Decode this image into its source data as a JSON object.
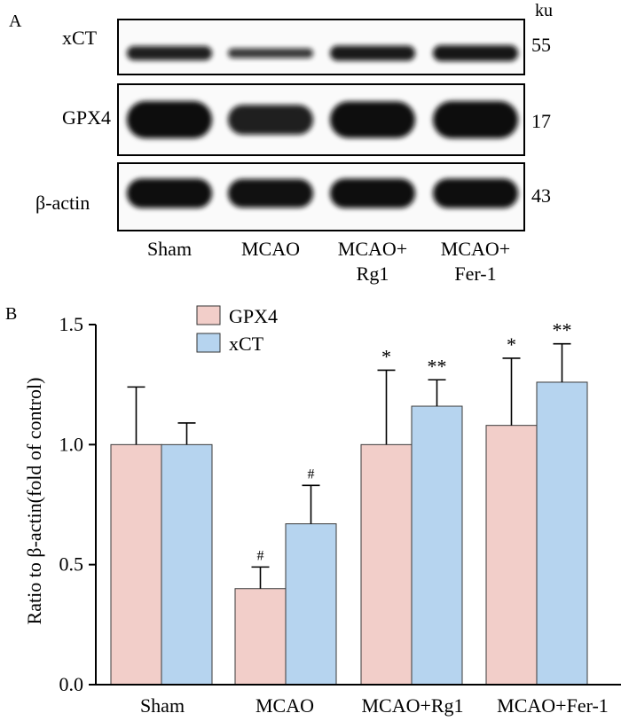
{
  "panel_a": {
    "panel_label": "A",
    "unit_label": "ku",
    "rows": [
      {
        "name": "xCT",
        "marker": "55",
        "intensities": [
          0.8,
          0.55,
          0.85,
          0.9
        ]
      },
      {
        "name": "GPX4",
        "marker": "17",
        "intensities": [
          1.0,
          0.8,
          0.98,
          1.0
        ]
      },
      {
        "name": "β-actin",
        "marker": "43",
        "intensities": [
          0.98,
          0.95,
          0.98,
          0.98
        ]
      }
    ],
    "lanes": [
      {
        "line1": "Sham",
        "line2": ""
      },
      {
        "line1": "MCAO",
        "line2": ""
      },
      {
        "line1": "MCAO+",
        "line2": "Rg1"
      },
      {
        "line1": "MCAO+",
        "line2": "Fer-1"
      }
    ]
  },
  "chart_data": {
    "panel_label": "B",
    "type": "bar",
    "title": "",
    "xlabel": "",
    "ylabel": "Ratio to β-actin(fold of control)",
    "ylim": [
      0,
      1.5
    ],
    "yticks": [
      "0.0",
      "0.5",
      "1.0",
      "1.5"
    ],
    "categories": [
      "Sham",
      "MCAO",
      "MCAO+Rg1",
      "MCAO+Fer-1"
    ],
    "series": [
      {
        "name": "GPX4",
        "color": "#f2cec9",
        "values": [
          1.0,
          0.4,
          1.0,
          1.08
        ],
        "errors": [
          0.24,
          0.09,
          0.31,
          0.28
        ],
        "annotations": [
          "",
          "#",
          "*",
          "*"
        ]
      },
      {
        "name": "xCT",
        "color": "#b6d4ef",
        "values": [
          1.0,
          0.67,
          1.16,
          1.26
        ],
        "errors": [
          0.09,
          0.16,
          0.11,
          0.16
        ],
        "annotations": [
          "",
          "#",
          "**",
          "**"
        ]
      }
    ],
    "legend": "top-center"
  }
}
